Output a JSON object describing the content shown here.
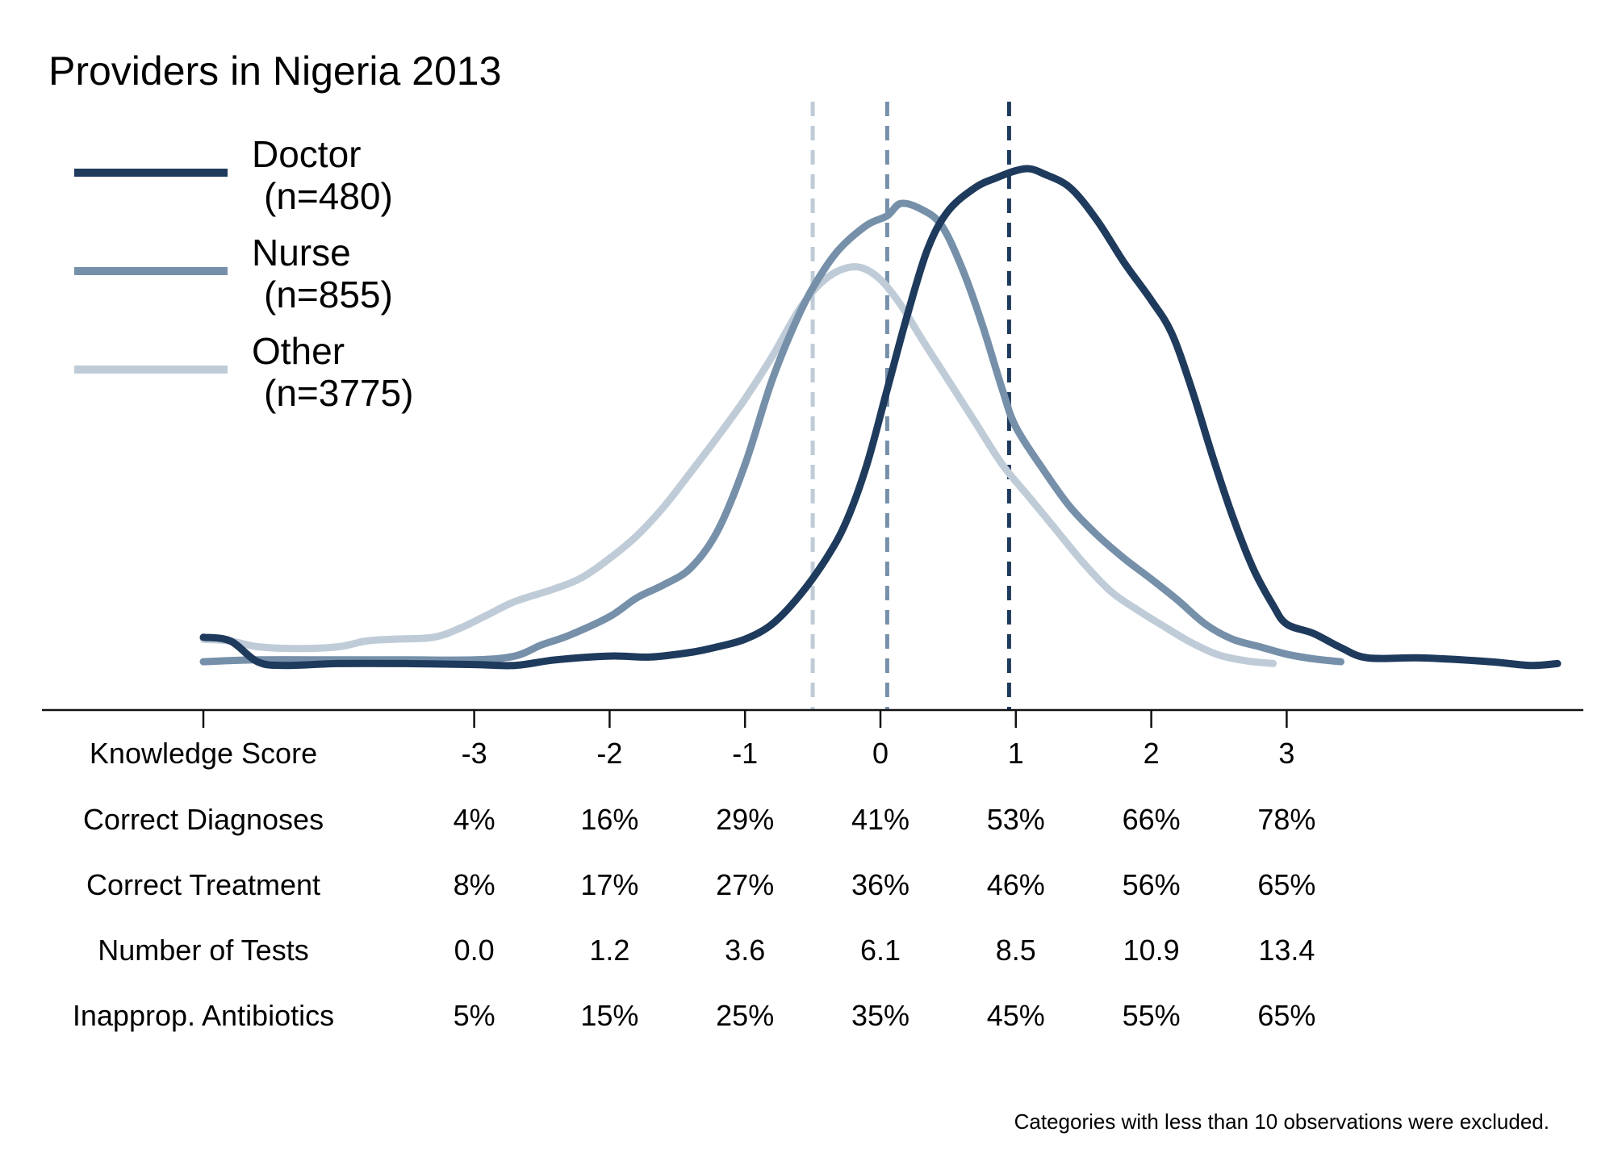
{
  "chart_data": {
    "type": "line",
    "title": "Providers in Nigeria 2013",
    "note": "Categories with less than 10 observations were excluded.",
    "xlim": [
      -5,
      5
    ],
    "ylim": [
      0,
      0.55
    ],
    "colors": {
      "Doctor": "#1e3a5c",
      "Nurse": "#7690aa",
      "Other": "#bfccd8"
    },
    "series": [
      {
        "name": "Doctor",
        "n_label": "(n=480)",
        "mean": 0.95,
        "points": [
          [
            -5.0,
            0.056
          ],
          [
            -4.8,
            0.052
          ],
          [
            -4.6,
            0.03
          ],
          [
            -4.4,
            0.026
          ],
          [
            -4.0,
            0.028
          ],
          [
            -3.5,
            0.028
          ],
          [
            -3.0,
            0.027
          ],
          [
            -2.7,
            0.026
          ],
          [
            -2.4,
            0.032
          ],
          [
            -2.0,
            0.036
          ],
          [
            -1.7,
            0.035
          ],
          [
            -1.4,
            0.04
          ],
          [
            -1.2,
            0.046
          ],
          [
            -1.0,
            0.054
          ],
          [
            -0.8,
            0.07
          ],
          [
            -0.6,
            0.1
          ],
          [
            -0.4,
            0.14
          ],
          [
            -0.25,
            0.18
          ],
          [
            -0.1,
            0.24
          ],
          [
            0.05,
            0.32
          ],
          [
            0.2,
            0.4
          ],
          [
            0.35,
            0.47
          ],
          [
            0.5,
            0.51
          ],
          [
            0.7,
            0.535
          ],
          [
            0.85,
            0.545
          ],
          [
            1.0,
            0.553
          ],
          [
            1.1,
            0.555
          ],
          [
            1.2,
            0.55
          ],
          [
            1.4,
            0.535
          ],
          [
            1.6,
            0.5
          ],
          [
            1.8,
            0.455
          ],
          [
            2.0,
            0.415
          ],
          [
            2.15,
            0.38
          ],
          [
            2.3,
            0.32
          ],
          [
            2.45,
            0.25
          ],
          [
            2.6,
            0.185
          ],
          [
            2.75,
            0.13
          ],
          [
            2.9,
            0.09
          ],
          [
            3.0,
            0.07
          ],
          [
            3.2,
            0.06
          ],
          [
            3.4,
            0.045
          ],
          [
            3.6,
            0.034
          ],
          [
            4.0,
            0.034
          ],
          [
            4.5,
            0.03
          ],
          [
            4.8,
            0.026
          ],
          [
            5.0,
            0.028
          ]
        ]
      },
      {
        "name": "Nurse",
        "n_label": "(n=855)",
        "mean": 0.05,
        "points": [
          [
            -5.0,
            0.03
          ],
          [
            -4.6,
            0.032
          ],
          [
            -4.0,
            0.032
          ],
          [
            -3.5,
            0.032
          ],
          [
            -3.0,
            0.032
          ],
          [
            -2.7,
            0.036
          ],
          [
            -2.5,
            0.048
          ],
          [
            -2.3,
            0.058
          ],
          [
            -2.0,
            0.078
          ],
          [
            -1.8,
            0.098
          ],
          [
            -1.6,
            0.112
          ],
          [
            -1.4,
            0.13
          ],
          [
            -1.2,
            0.17
          ],
          [
            -1.0,
            0.24
          ],
          [
            -0.8,
            0.33
          ],
          [
            -0.6,
            0.4
          ],
          [
            -0.45,
            0.44
          ],
          [
            -0.3,
            0.47
          ],
          [
            -0.1,
            0.495
          ],
          [
            0.05,
            0.505
          ],
          [
            0.15,
            0.518
          ],
          [
            0.3,
            0.512
          ],
          [
            0.45,
            0.495
          ],
          [
            0.6,
            0.45
          ],
          [
            0.75,
            0.39
          ],
          [
            0.9,
            0.32
          ],
          [
            1.0,
            0.28
          ],
          [
            1.2,
            0.235
          ],
          [
            1.4,
            0.195
          ],
          [
            1.6,
            0.165
          ],
          [
            1.8,
            0.14
          ],
          [
            2.0,
            0.118
          ],
          [
            2.2,
            0.095
          ],
          [
            2.4,
            0.07
          ],
          [
            2.6,
            0.054
          ],
          [
            2.8,
            0.046
          ],
          [
            3.0,
            0.038
          ],
          [
            3.2,
            0.033
          ],
          [
            3.4,
            0.03
          ]
        ]
      },
      {
        "name": "Other",
        "n_label": "(n=3775)",
        "mean": -0.5,
        "points": [
          [
            -5.0,
            0.054
          ],
          [
            -4.8,
            0.052
          ],
          [
            -4.6,
            0.046
          ],
          [
            -4.3,
            0.044
          ],
          [
            -4.0,
            0.046
          ],
          [
            -3.8,
            0.052
          ],
          [
            -3.6,
            0.054
          ],
          [
            -3.3,
            0.056
          ],
          [
            -3.1,
            0.066
          ],
          [
            -2.9,
            0.08
          ],
          [
            -2.7,
            0.094
          ],
          [
            -2.4,
            0.108
          ],
          [
            -2.2,
            0.12
          ],
          [
            -2.0,
            0.14
          ],
          [
            -1.8,
            0.164
          ],
          [
            -1.6,
            0.195
          ],
          [
            -1.4,
            0.232
          ],
          [
            -1.2,
            0.27
          ],
          [
            -1.0,
            0.31
          ],
          [
            -0.8,
            0.355
          ],
          [
            -0.6,
            0.405
          ],
          [
            -0.45,
            0.432
          ],
          [
            -0.3,
            0.447
          ],
          [
            -0.15,
            0.45
          ],
          [
            0.0,
            0.437
          ],
          [
            0.15,
            0.41
          ],
          [
            0.3,
            0.375
          ],
          [
            0.5,
            0.33
          ],
          [
            0.7,
            0.285
          ],
          [
            0.9,
            0.24
          ],
          [
            1.1,
            0.205
          ],
          [
            1.3,
            0.17
          ],
          [
            1.5,
            0.135
          ],
          [
            1.7,
            0.105
          ],
          [
            1.9,
            0.085
          ],
          [
            2.1,
            0.067
          ],
          [
            2.3,
            0.05
          ],
          [
            2.5,
            0.037
          ],
          [
            2.7,
            0.031
          ],
          [
            2.9,
            0.028
          ]
        ]
      }
    ],
    "x_ticks": [
      "-3",
      "-2",
      "-1",
      "0",
      "1",
      "2",
      "3"
    ],
    "table": {
      "header_label": "Knowledge Score",
      "rows": [
        {
          "label": "Correct Diagnoses",
          "values": [
            "4%",
            "16%",
            "29%",
            "41%",
            "53%",
            "66%",
            "78%"
          ]
        },
        {
          "label": "Correct Treatment",
          "values": [
            "8%",
            "17%",
            "27%",
            "36%",
            "46%",
            "56%",
            "65%"
          ]
        },
        {
          "label": "Number of Tests",
          "values": [
            "0.0",
            "1.2",
            "3.6",
            "6.1",
            "8.5",
            "10.9",
            "13.4"
          ]
        },
        {
          "label": "Inapprop. Antibiotics",
          "values": [
            "5%",
            "15%",
            "25%",
            "35%",
            "45%",
            "55%",
            "65%"
          ]
        }
      ]
    }
  }
}
